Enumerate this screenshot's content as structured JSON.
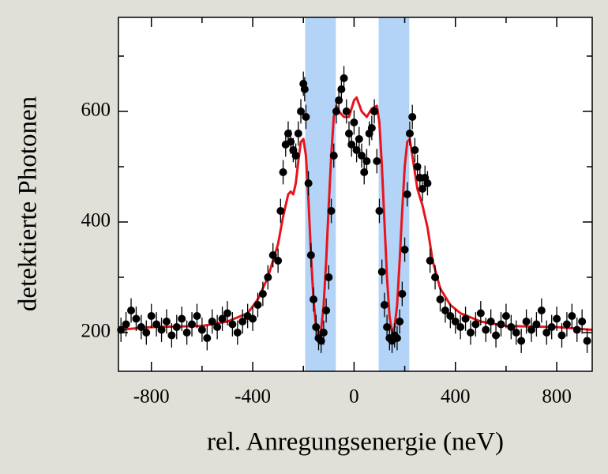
{
  "chart_data": {
    "type": "scatter",
    "xlabel": "rel. Anregungsenergie (neV)",
    "ylabel": "detektierte Photonen",
    "xlim": [
      -930,
      940
    ],
    "ylim": [
      130,
      770
    ],
    "xticks": [
      -800,
      -400,
      0,
      400,
      800
    ],
    "yticks": [
      200,
      400,
      600
    ],
    "xminorticks": [
      -600,
      -200,
      200,
      600
    ],
    "yminorticks": [
      300,
      500,
      700
    ],
    "bands": [
      [
        -193,
        -72
      ],
      [
        97,
        218
      ]
    ],
    "band_color": "#b3d4f7",
    "series": [
      {
        "kind": "points",
        "color": "#000000",
        "error": 22,
        "x": [
          -920,
          -900,
          -880,
          -860,
          -840,
          -820,
          -800,
          -780,
          -760,
          -740,
          -720,
          -700,
          -680,
          -660,
          -640,
          -620,
          -600,
          -580,
          -560,
          -540,
          -520,
          -500,
          -480,
          -460,
          -440,
          -420,
          -400,
          -380,
          -360,
          -340,
          -320,
          -300,
          -290,
          -280,
          -270,
          -260,
          -250,
          -240,
          -230,
          -220,
          -210,
          -200,
          -195,
          -190,
          -180,
          -170,
          -160,
          -150,
          -140,
          -130,
          -120,
          -110,
          -100,
          -90,
          -80,
          -70,
          -60,
          -50,
          -40,
          -30,
          -20,
          -10,
          0,
          10,
          20,
          30,
          40,
          50,
          60,
          70,
          80,
          90,
          100,
          110,
          120,
          130,
          140,
          150,
          160,
          170,
          180,
          190,
          200,
          210,
          220,
          230,
          240,
          250,
          260,
          270,
          280,
          290,
          300,
          320,
          340,
          360,
          380,
          400,
          420,
          440,
          460,
          480,
          500,
          520,
          540,
          560,
          580,
          600,
          620,
          640,
          660,
          680,
          700,
          720,
          740,
          760,
          780,
          800,
          820,
          840,
          860,
          880,
          900,
          920
        ],
        "values": [
          205,
          215,
          240,
          225,
          210,
          200,
          230,
          215,
          205,
          220,
          195,
          210,
          225,
          200,
          215,
          230,
          205,
          190,
          220,
          210,
          225,
          235,
          215,
          200,
          220,
          230,
          225,
          250,
          270,
          300,
          340,
          330,
          420,
          490,
          540,
          560,
          545,
          530,
          520,
          560,
          600,
          650,
          640,
          590,
          470,
          340,
          260,
          210,
          190,
          185,
          200,
          240,
          300,
          420,
          520,
          600,
          620,
          640,
          660,
          600,
          560,
          540,
          580,
          530,
          550,
          520,
          490,
          510,
          560,
          570,
          600,
          510,
          420,
          310,
          250,
          210,
          190,
          185,
          195,
          190,
          220,
          270,
          350,
          450,
          560,
          590,
          530,
          500,
          480,
          460,
          480,
          470,
          330,
          300,
          260,
          240,
          230,
          220,
          210,
          225,
          200,
          215,
          235,
          205,
          220,
          195,
          215,
          230,
          210,
          200,
          185,
          220,
          205,
          215,
          240,
          200,
          210,
          225,
          195,
          215,
          230,
          205,
          220,
          185
        ]
      },
      {
        "kind": "fit",
        "color": "#e8141c",
        "x": [
          -930,
          -800,
          -600,
          -500,
          -420,
          -380,
          -340,
          -300,
          -280,
          -260,
          -250,
          -240,
          -230,
          -220,
          -210,
          -200,
          -190,
          -180,
          -170,
          -160,
          -150,
          -140,
          -130,
          -120,
          -110,
          -100,
          -90,
          -80,
          -70,
          -60,
          -40,
          -20,
          0,
          10,
          30,
          50,
          70,
          90,
          100,
          110,
          120,
          130,
          140,
          150,
          160,
          170,
          180,
          190,
          200,
          210,
          220,
          230,
          250,
          270,
          290,
          310,
          340,
          380,
          420,
          500,
          600,
          800,
          940
        ],
        "values": [
          205,
          210,
          212,
          220,
          235,
          260,
          300,
          360,
          410,
          450,
          455,
          450,
          470,
          510,
          545,
          550,
          520,
          440,
          340,
          260,
          210,
          195,
          205,
          250,
          330,
          430,
          520,
          590,
          610,
          600,
          590,
          590,
          620,
          625,
          600,
          590,
          605,
          610,
          580,
          500,
          400,
          300,
          230,
          200,
          210,
          250,
          330,
          420,
          500,
          545,
          550,
          520,
          460,
          430,
          390,
          330,
          280,
          250,
          235,
          220,
          212,
          210,
          205
        ]
      }
    ]
  }
}
